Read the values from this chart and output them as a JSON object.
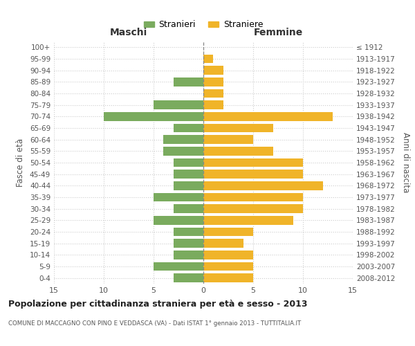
{
  "age_groups": [
    "100+",
    "95-99",
    "90-94",
    "85-89",
    "80-84",
    "75-79",
    "70-74",
    "65-69",
    "60-64",
    "55-59",
    "50-54",
    "45-49",
    "40-44",
    "35-39",
    "30-34",
    "25-29",
    "20-24",
    "15-19",
    "10-14",
    "5-9",
    "0-4"
  ],
  "birth_years": [
    "≤ 1912",
    "1913-1917",
    "1918-1922",
    "1923-1927",
    "1928-1932",
    "1933-1937",
    "1938-1942",
    "1943-1947",
    "1948-1952",
    "1953-1957",
    "1958-1962",
    "1963-1967",
    "1968-1972",
    "1973-1977",
    "1978-1982",
    "1983-1987",
    "1988-1992",
    "1993-1997",
    "1998-2002",
    "2003-2007",
    "2008-2012"
  ],
  "males": [
    0,
    0,
    0,
    3,
    0,
    5,
    10,
    3,
    4,
    4,
    3,
    3,
    3,
    5,
    3,
    5,
    3,
    3,
    3,
    5,
    3
  ],
  "females": [
    0,
    1,
    2,
    2,
    2,
    2,
    13,
    7,
    5,
    7,
    10,
    10,
    12,
    10,
    10,
    9,
    5,
    4,
    5,
    5,
    5
  ],
  "male_color": "#7aab5e",
  "female_color": "#f0b429",
  "title": "Popolazione per cittadinanza straniera per età e sesso - 2013",
  "subtitle": "COMUNE DI MACCAGNO CON PINO E VEDDASCA (VA) - Dati ISTAT 1° gennaio 2013 - TUTTITALIA.IT",
  "xlabel_left": "Maschi",
  "xlabel_right": "Femmine",
  "ylabel_left": "Fasce di età",
  "ylabel_right": "Anni di nascita",
  "legend_male": "Stranieri",
  "legend_female": "Straniere",
  "xlim": 15,
  "background_color": "#ffffff",
  "grid_color": "#cccccc"
}
